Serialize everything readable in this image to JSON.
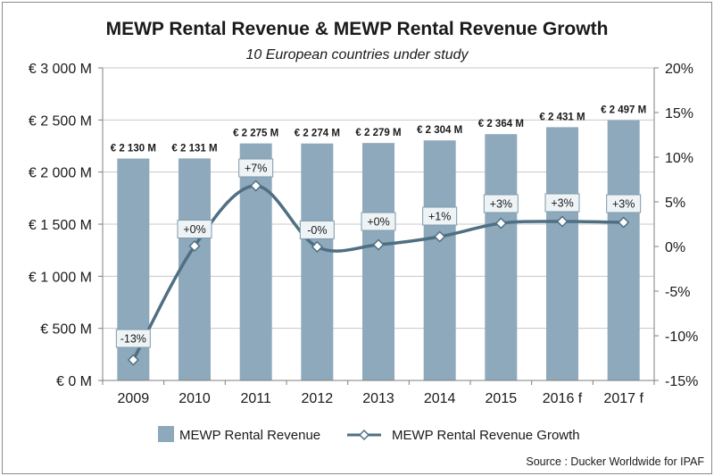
{
  "chart_data": {
    "type": "bar+line",
    "title": "MEWP Rental Revenue & MEWP Rental Revenue Growth",
    "subtitle": "10 European countries under study",
    "categories": [
      "2009",
      "2010",
      "2011",
      "2012",
      "2013",
      "2014",
      "2015",
      "2016 f",
      "2017 f"
    ],
    "series": [
      {
        "name": "MEWP Rental Revenue",
        "type": "bar",
        "axis": "left",
        "color": "#8ea9bb",
        "values": [
          2130,
          2131,
          2275,
          2274,
          2279,
          2304,
          2364,
          2431,
          2497
        ],
        "labels": [
          "€ 2 130 M",
          "€ 2 131 M",
          "€ 2 275 M",
          "€ 2 274 M",
          "€ 2 279 M",
          "€ 2 304 M",
          "€ 2 364 M",
          "€ 2 431 M",
          "€ 2 497 M"
        ]
      },
      {
        "name": "MEWP Rental Revenue Growth",
        "type": "line",
        "axis": "right",
        "color": "#4f6f82",
        "values": [
          -12.7,
          0.05,
          6.8,
          -0.04,
          0.2,
          1.1,
          2.6,
          2.8,
          2.7
        ],
        "labels": [
          "-13%",
          "+0%",
          "+7%",
          "-0%",
          "+0%",
          "+1%",
          "+3%",
          "+3%",
          "+3%"
        ]
      }
    ],
    "left_axis": {
      "ylim": [
        0,
        3000
      ],
      "ticks": [
        0,
        500,
        1000,
        1500,
        2000,
        2500,
        3000
      ],
      "tick_labels": [
        "€ 0 M",
        "€ 500 M",
        "€ 1 000 M",
        "€ 1 500 M",
        "€ 2 000 M",
        "€ 2 500 M",
        "€ 3 000 M"
      ]
    },
    "right_axis": {
      "ylim": [
        -15,
        20
      ],
      "ticks": [
        -15,
        -10,
        -5,
        0,
        5,
        10,
        15,
        20
      ],
      "tick_labels": [
        "-15%",
        "-10%",
        "-5%",
        "0%",
        "5%",
        "10%",
        "15%",
        "20%"
      ]
    },
    "grid": true,
    "legend_position": "bottom",
    "source": "Source : Ducker Worldwide for IPAF"
  }
}
